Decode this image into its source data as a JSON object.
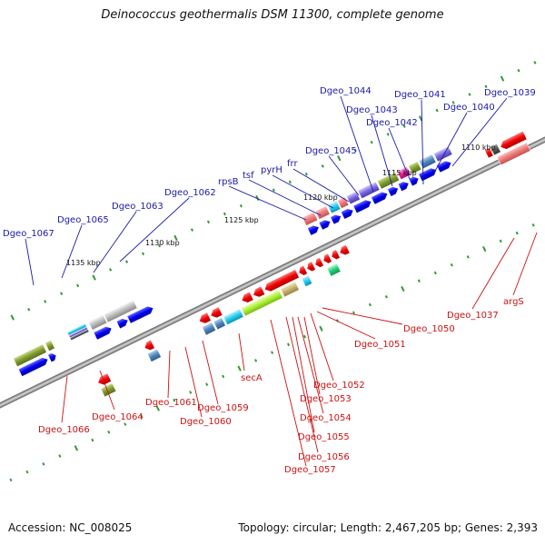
{
  "title": "Deinococcus geothermalis DSM 11300, complete genome",
  "footer": {
    "accession": "Accession: NC_008025",
    "topology": "Topology: circular; Length: 2,467,205 bp; Genes: 2,393"
  },
  "colors": {
    "backbone": "#8a8a8a",
    "forward_cds": "#0000ee",
    "reverse_cds": "#ee0000",
    "tick": "#339933",
    "label_forward": "#1a1aaa",
    "label_reverse": "#cc1111"
  },
  "scale_labels": [
    "1110 kbp",
    "1115 kbp",
    "1120 kbp",
    "1125 kbp",
    "1130 kbp",
    "1135 kbp"
  ],
  "upper_labels": [
    "Dgeo_1044",
    "Dgeo_1041",
    "Dgeo_1039",
    "Dgeo_1043",
    "Dgeo_1040",
    "Dgeo_1042",
    "Dgeo_1045",
    "frr",
    "pyrH",
    "tsf",
    "rpsB",
    "Dgeo_1062",
    "Dgeo_1063",
    "Dgeo_1065",
    "Dgeo_1067"
  ],
  "lower_labels": [
    "Dgeo_1037",
    "argS",
    "Dgeo_1050",
    "Dgeo_1051",
    "secA",
    "Dgeo_1052",
    "Dgeo_1053",
    "Dgeo_1054",
    "Dgeo_1055",
    "Dgeo_1056",
    "Dgeo_1057",
    "Dgeo_1061",
    "Dgeo_1059",
    "Dgeo_1060",
    "Dgeo_1064",
    "Dgeo_1066"
  ]
}
